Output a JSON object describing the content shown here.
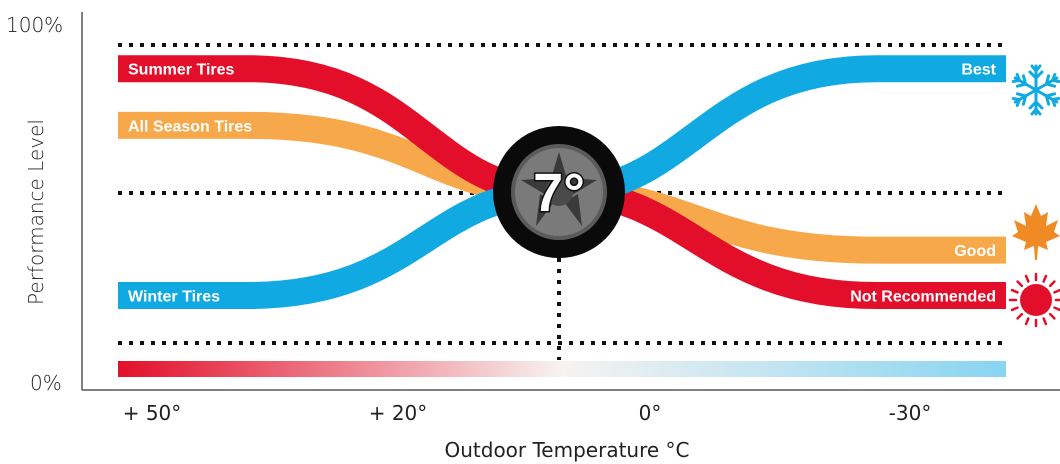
{
  "chart_data": {
    "type": "line",
    "xlabel": "Outdoor Temperature °C",
    "ylabel": "Performance Level",
    "y_ticks": [
      "100%",
      "0%"
    ],
    "x_ticks": [
      "+ 50°",
      "+ 20°",
      "0°",
      "-30°"
    ],
    "x_tick_values": [
      50,
      20,
      0,
      -30
    ],
    "xlim": [
      57,
      -38
    ],
    "ylim": [
      0,
      100
    ],
    "grid": "dotted horizontal lines",
    "crossover_label": "7°",
    "crossover_temperature": 7,
    "series": [
      {
        "name": "Summer Tires",
        "color": "#e30f2a",
        "start_level": 85,
        "end_level": 25
      },
      {
        "name": "All Season Tires",
        "color": "#f6a84b",
        "start_level": 70,
        "end_level": 37
      },
      {
        "name": "Winter Tires",
        "color": "#11a9e2",
        "start_level": 25,
        "end_level": 85
      }
    ],
    "right_labels": [
      {
        "text": "Best",
        "icon": "snowflake-icon",
        "color": "#11a9e2"
      },
      {
        "text": "Good",
        "icon": "maple-leaf-icon",
        "color": "#f6a84b"
      },
      {
        "text": "Not Recommended",
        "icon": "sun-icon",
        "color": "#e30f2a"
      }
    ],
    "gradient_bar": {
      "from_color": "#e30f2a",
      "to_color": "#87d4f1"
    }
  }
}
